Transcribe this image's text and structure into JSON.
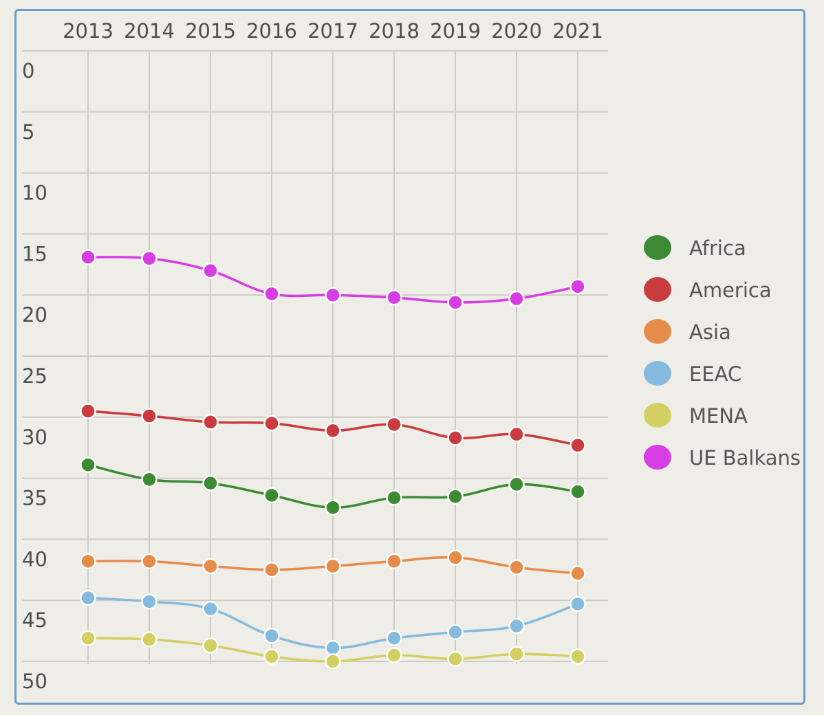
{
  "chart_data": {
    "type": "line",
    "x": [
      2013,
      2014,
      2015,
      2016,
      2017,
      2018,
      2019,
      2020,
      2021
    ],
    "x_axis_position": "top",
    "y_axis_inverted": true,
    "ylim": [
      0,
      50
    ],
    "y_ticks": [
      0,
      5,
      10,
      15,
      20,
      25,
      30,
      35,
      40,
      45,
      50
    ],
    "grid": true,
    "legend_position": "right",
    "series": [
      {
        "name": "Africa",
        "color": "#3c8a33",
        "values": [
          33.9,
          35.1,
          35.4,
          36.4,
          37.4,
          36.6,
          36.5,
          35.5,
          36.1
        ]
      },
      {
        "name": "America",
        "color": "#c93b3f",
        "values": [
          29.5,
          29.9,
          30.4,
          30.5,
          31.1,
          30.6,
          31.7,
          31.4,
          32.3
        ]
      },
      {
        "name": "Asia",
        "color": "#e68c4a",
        "values": [
          41.8,
          41.8,
          42.2,
          42.5,
          42.2,
          41.8,
          41.5,
          42.3,
          42.8
        ]
      },
      {
        "name": "EEAC",
        "color": "#84bbde",
        "values": [
          44.8,
          45.1,
          45.7,
          47.9,
          48.9,
          48.1,
          47.6,
          47.1,
          45.3
        ]
      },
      {
        "name": "MENA",
        "color": "#d4cf62",
        "values": [
          48.1,
          48.2,
          48.7,
          49.6,
          50.0,
          49.5,
          49.8,
          49.4,
          49.6
        ]
      },
      {
        "name": "UE Balkans",
        "color": "#d63ee3",
        "values": [
          16.9,
          17.0,
          18.0,
          19.9,
          20.0,
          20.2,
          20.6,
          20.3,
          19.3
        ]
      }
    ]
  }
}
